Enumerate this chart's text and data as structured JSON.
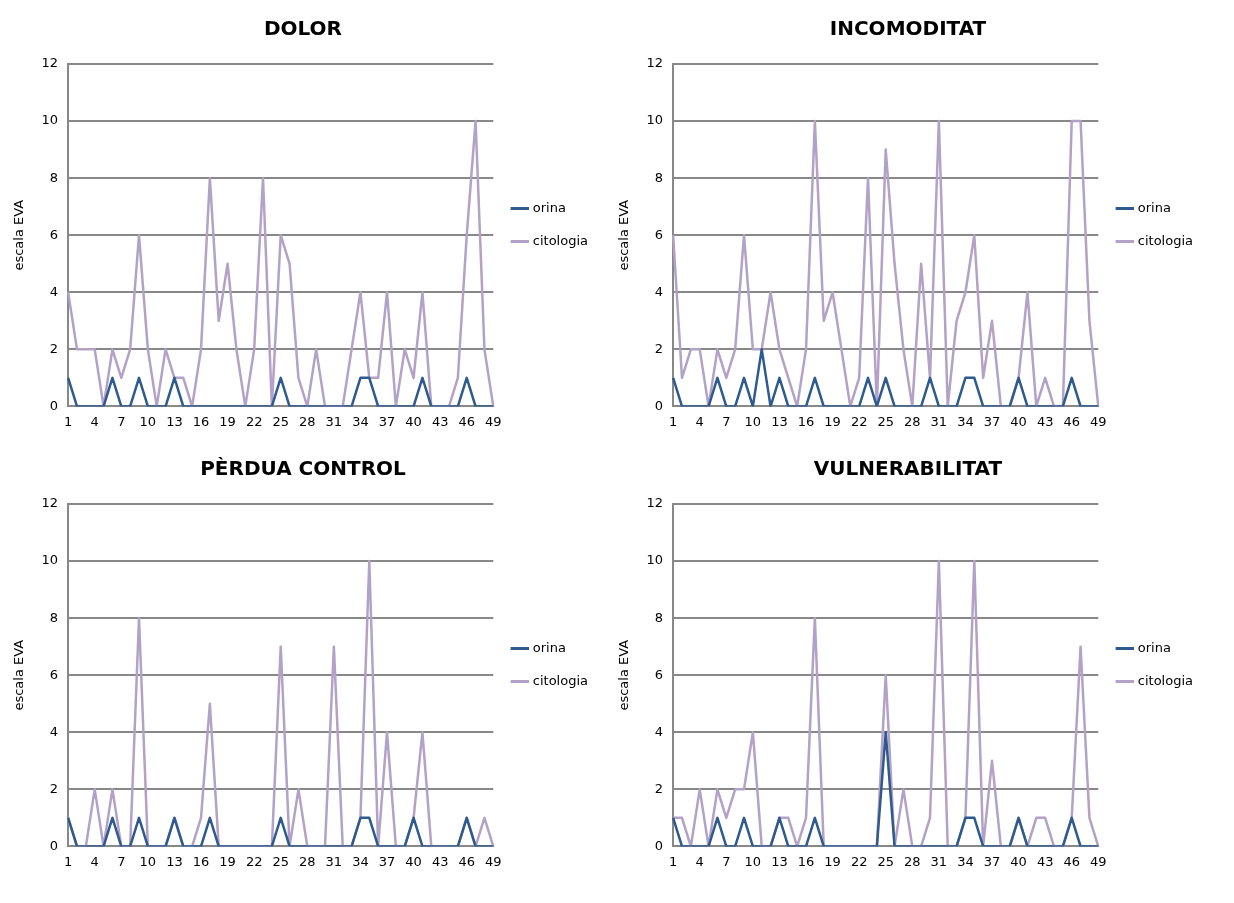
{
  "chart_data": [
    {
      "type": "line",
      "title": "DOLOR",
      "ylabel": "escala EVA",
      "categories": [
        "1",
        null,
        null,
        "4",
        null,
        null,
        "7",
        null,
        null,
        "10",
        null,
        null,
        "13",
        null,
        null,
        "16",
        null,
        null,
        "19",
        null,
        null,
        "22",
        null,
        null,
        "25",
        null,
        null,
        "28",
        null,
        null,
        "31",
        null,
        null,
        "34",
        null,
        null,
        "37",
        null,
        null,
        "40",
        null,
        null,
        "43",
        null,
        null,
        "46",
        null,
        null,
        "49"
      ],
      "ylim": [
        0,
        12
      ],
      "yticks": [
        0,
        2,
        4,
        6,
        8,
        10,
        12
      ],
      "grid": "y",
      "legend": "right",
      "marker": "none",
      "series": [
        {
          "name": "orina",
          "color": "#2e5a8e",
          "values": [
            1,
            0,
            0,
            0,
            0,
            1,
            0,
            0,
            1,
            0,
            0,
            0,
            1,
            0,
            0,
            0,
            0,
            0,
            0,
            0,
            0,
            0,
            0,
            0,
            1,
            0,
            0,
            0,
            0,
            0,
            0,
            0,
            0,
            1,
            1,
            0,
            0,
            0,
            0,
            0,
            1,
            0,
            0,
            0,
            0,
            1,
            0,
            0,
            0
          ]
        },
        {
          "name": "citologia",
          "color": "#b3a2c7",
          "values": [
            4,
            2,
            2,
            2,
            0,
            2,
            1,
            2,
            6,
            2,
            0,
            2,
            1,
            1,
            0,
            2,
            8,
            3,
            5,
            2,
            0,
            2,
            8,
            0,
            6,
            5,
            1,
            0,
            2,
            0,
            0,
            0,
            2,
            4,
            1,
            1,
            4,
            0,
            2,
            1,
            4,
            0,
            0,
            0,
            1,
            6,
            10,
            2,
            0
          ]
        }
      ]
    },
    {
      "type": "line",
      "title": "INCOMODITAT",
      "ylabel": "escala EVA",
      "categories": [
        "1",
        null,
        null,
        "4",
        null,
        null,
        "7",
        null,
        null,
        "10",
        null,
        null,
        "13",
        null,
        null,
        "16",
        null,
        null,
        "19",
        null,
        null,
        "22",
        null,
        null,
        "25",
        null,
        null,
        "28",
        null,
        null,
        "31",
        null,
        null,
        "34",
        null,
        null,
        "37",
        null,
        null,
        "40",
        null,
        null,
        "43",
        null,
        null,
        "46",
        null,
        null,
        "49"
      ],
      "ylim": [
        0,
        12
      ],
      "yticks": [
        0,
        2,
        4,
        6,
        8,
        10,
        12
      ],
      "grid": "y",
      "legend": "right",
      "marker": "none",
      "series": [
        {
          "name": "orina",
          "color": "#2e5a8e",
          "values": [
            1,
            0,
            0,
            0,
            0,
            1,
            0,
            0,
            1,
            0,
            2,
            0,
            1,
            0,
            0,
            0,
            1,
            0,
            0,
            0,
            0,
            0,
            1,
            0,
            1,
            0,
            0,
            0,
            0,
            1,
            0,
            0,
            0,
            1,
            1,
            0,
            0,
            0,
            0,
            1,
            0,
            0,
            0,
            0,
            0,
            1,
            0,
            0,
            0
          ]
        },
        {
          "name": "citologia",
          "color": "#b3a2c7",
          "values": [
            6,
            1,
            2,
            2,
            0,
            2,
            1,
            2,
            6,
            2,
            2,
            4,
            2,
            1,
            0,
            2,
            10,
            3,
            4,
            2,
            0,
            1,
            8,
            0,
            9,
            5,
            2,
            0,
            5,
            1,
            10,
            0,
            3,
            4,
            6,
            1,
            3,
            0,
            0,
            1,
            4,
            0,
            1,
            0,
            0,
            10,
            10,
            3,
            0
          ]
        }
      ]
    },
    {
      "type": "line",
      "title": "PÈRDUA CONTROL",
      "ylabel": "escala EVA",
      "categories": [
        "1",
        null,
        null,
        "4",
        null,
        null,
        "7",
        null,
        null,
        "10",
        null,
        null,
        "13",
        null,
        null,
        "16",
        null,
        null,
        "19",
        null,
        null,
        "22",
        null,
        null,
        "25",
        null,
        null,
        "28",
        null,
        null,
        "31",
        null,
        null,
        "34",
        null,
        null,
        "37",
        null,
        null,
        "40",
        null,
        null,
        "43",
        null,
        null,
        "46",
        null,
        null,
        "49"
      ],
      "ylim": [
        0,
        12
      ],
      "yticks": [
        0,
        2,
        4,
        6,
        8,
        10,
        12
      ],
      "grid": "y",
      "legend": "right",
      "marker": "none",
      "series": [
        {
          "name": "orina",
          "color": "#2e5a8e",
          "values": [
            1,
            0,
            0,
            0,
            0,
            1,
            0,
            0,
            1,
            0,
            0,
            0,
            1,
            0,
            0,
            0,
            1,
            0,
            0,
            0,
            0,
            0,
            0,
            0,
            1,
            0,
            0,
            0,
            0,
            0,
            0,
            0,
            0,
            1,
            1,
            0,
            0,
            0,
            0,
            1,
            0,
            0,
            0,
            0,
            0,
            1,
            0,
            0,
            0
          ]
        },
        {
          "name": "citologia",
          "color": "#b3a2c7",
          "values": [
            1,
            0,
            0,
            2,
            0,
            2,
            0,
            0,
            8,
            0,
            0,
            0,
            1,
            0,
            0,
            1,
            5,
            0,
            0,
            0,
            0,
            0,
            0,
            0,
            7,
            0,
            2,
            0,
            0,
            0,
            7,
            0,
            0,
            1,
            10,
            0,
            4,
            0,
            0,
            1,
            4,
            0,
            0,
            0,
            0,
            1,
            0,
            1,
            0
          ]
        }
      ]
    },
    {
      "type": "line",
      "title": "VULNERABILITAT",
      "ylabel": "escala EVA",
      "categories": [
        "1",
        null,
        null,
        "4",
        null,
        null,
        "7",
        null,
        null,
        "10",
        null,
        null,
        "13",
        null,
        null,
        "16",
        null,
        null,
        "19",
        null,
        null,
        "22",
        null,
        null,
        "25",
        null,
        null,
        "28",
        null,
        null,
        "31",
        null,
        null,
        "34",
        null,
        null,
        "37",
        null,
        null,
        "40",
        null,
        null,
        "43",
        null,
        null,
        "46",
        null,
        null,
        "49"
      ],
      "ylim": [
        0,
        12
      ],
      "yticks": [
        0,
        2,
        4,
        6,
        8,
        10,
        12
      ],
      "grid": "y",
      "legend": "right",
      "marker": "none",
      "series": [
        {
          "name": "orina",
          "color": "#2e5a8e",
          "values": [
            1,
            0,
            0,
            0,
            0,
            1,
            0,
            0,
            1,
            0,
            0,
            0,
            1,
            0,
            0,
            0,
            1,
            0,
            0,
            0,
            0,
            0,
            0,
            0,
            4,
            0,
            0,
            0,
            0,
            0,
            0,
            0,
            0,
            1,
            1,
            0,
            0,
            0,
            0,
            1,
            0,
            0,
            0,
            0,
            0,
            1,
            0,
            0,
            0
          ]
        },
        {
          "name": "citologia",
          "color": "#b3a2c7",
          "values": [
            1,
            1,
            0,
            2,
            0,
            2,
            1,
            2,
            2,
            4,
            0,
            0,
            1,
            1,
            0,
            1,
            8,
            0,
            0,
            0,
            0,
            0,
            0,
            0,
            6,
            0,
            2,
            0,
            0,
            1,
            10,
            0,
            0,
            1,
            10,
            0,
            3,
            0,
            0,
            1,
            0,
            1,
            1,
            0,
            0,
            1,
            7,
            1,
            0
          ]
        }
      ]
    }
  ]
}
